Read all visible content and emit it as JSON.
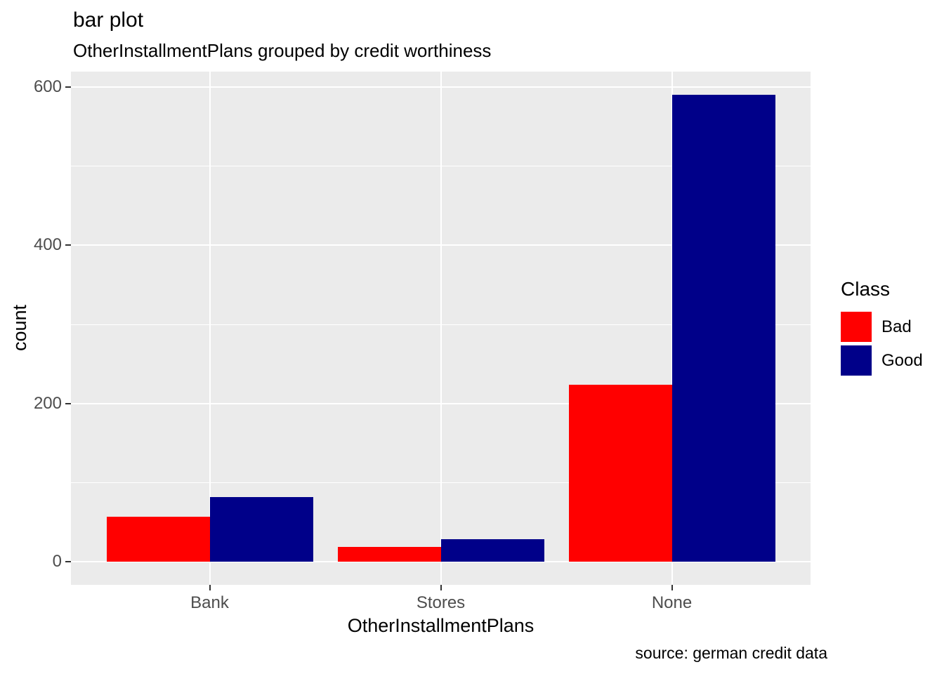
{
  "chart_data": {
    "type": "bar",
    "grouping": "dodge",
    "title": "bar plot",
    "subtitle": "OtherInstallmentPlans grouped by credit worthiness",
    "caption": "source: german credit data",
    "xlabel": "OtherInstallmentPlans",
    "ylabel": "count",
    "categories": [
      "Bank",
      "Stores",
      "None"
    ],
    "series": [
      {
        "name": "Bad",
        "color": "#ff0000",
        "values": [
          57,
          19,
          224
        ]
      },
      {
        "name": "Good",
        "color": "#000089",
        "values": [
          82,
          28,
          590
        ]
      }
    ],
    "ylim": [
      0,
      620
    ],
    "y_ticks": [
      0,
      200,
      400,
      600
    ],
    "y_minor_ticks": [
      100,
      300,
      500
    ],
    "grid": true,
    "legend": {
      "title": "Class",
      "position": "right"
    },
    "colors": {
      "panel_bg": "#ebebeb",
      "grid": "#ffffff",
      "tick_mark": "#333333",
      "tick_label": "#4d4d4d",
      "text": "#000000",
      "page_bg": "#ffffff"
    }
  }
}
